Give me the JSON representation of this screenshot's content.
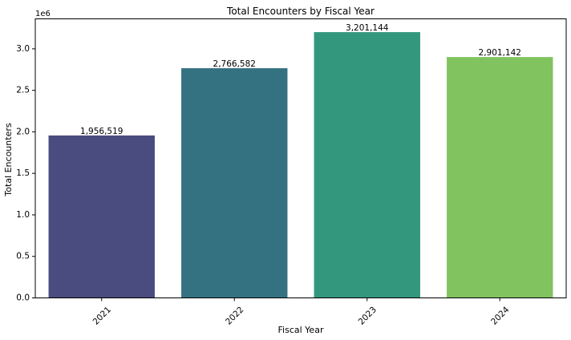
{
  "chart_data": {
    "type": "bar",
    "title": "Total Encounters by Fiscal Year",
    "xlabel": "Fiscal Year",
    "ylabel": "Total Encounters",
    "y_scale_label": "1e6",
    "categories": [
      "2021",
      "2022",
      "2023",
      "2024"
    ],
    "values": [
      1956519,
      2766582,
      3201144,
      2901142
    ],
    "value_labels": [
      "1,956,519",
      "2,766,582",
      "3,201,144",
      "2,901,142"
    ],
    "colors": [
      "#4a4b7e",
      "#357281",
      "#33977d",
      "#80c35f"
    ],
    "ylim": [
      0,
      3361201
    ],
    "yticks": [
      0,
      500000,
      1000000,
      1500000,
      2000000,
      2500000,
      3000000
    ],
    "ytick_labels": [
      "0.0",
      "0.5",
      "1.0",
      "1.5",
      "2.0",
      "2.5",
      "3.0"
    ],
    "xtick_rotation_deg": 45,
    "grid": false,
    "legend": "none"
  }
}
